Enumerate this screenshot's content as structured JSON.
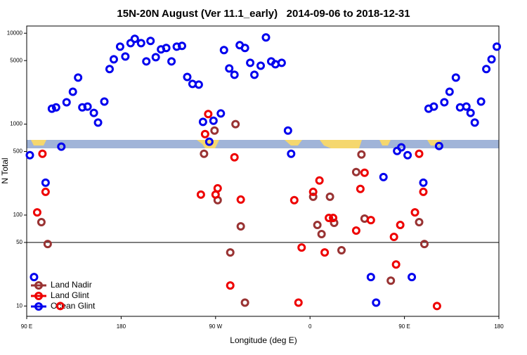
{
  "chart_data": {
    "type": "scatter",
    "title": "15N-20N August (Ver 11.1_early)   2014-09-06 to 2018-12-31",
    "x_label": "Longitude (deg E)",
    "y_label": "N Total",
    "xlim": [
      -270,
      180
    ],
    "xticks": [
      {
        "value": -270,
        "label": "90 E"
      },
      {
        "value": -180,
        "label": "180"
      },
      {
        "value": -90,
        "label": "90 W"
      },
      0,
      {
        "value": 90,
        "label": "90 E"
      },
      {
        "value": 180,
        "label": "180"
      }
    ],
    "ylim": [
      7.7,
      12000
    ],
    "yscale": "log",
    "yticks": [
      10,
      50,
      100,
      500,
      1000,
      5000,
      10000
    ],
    "hline": 50,
    "legend": "bottom-left",
    "series": [
      {
        "name": "Land Nadir",
        "color": "#993333",
        "x": [
          -256,
          -250,
          -101,
          -91,
          -88,
          -71,
          -76,
          -66,
          -62,
          3,
          7,
          11,
          19,
          23,
          30,
          44,
          49,
          52,
          77,
          104,
          109
        ],
        "values": [
          83.6,
          48.1,
          472,
          850,
          146,
          1000,
          38.8,
          75.2,
          10.9,
          159,
          77.8,
          61.8,
          159,
          82.2,
          41,
          297,
          464,
          91.4,
          19,
          83.6,
          48.1
        ]
      },
      {
        "name": "Land Glint",
        "color": "#ee0000",
        "x": [
          -255,
          -252,
          -260,
          -238,
          -104,
          -100,
          -97,
          -90,
          -88,
          -72,
          -66,
          -76,
          -15,
          -11,
          -8,
          3,
          9,
          14,
          18,
          22,
          44,
          48,
          52,
          58,
          80,
          82,
          86,
          100,
          104,
          108,
          121
        ],
        "values": [
          472,
          180,
          107,
          10,
          168,
          778,
          1290,
          168,
          197,
          432,
          148,
          16.8,
          146,
          10.9,
          44,
          180,
          240,
          38.8,
          93,
          93,
          67.5,
          194,
          292,
          88,
          57.5,
          28.6,
          77.8,
          107,
          472,
          180,
          10
        ]
      },
      {
        "name": "Ocean Glint",
        "color": "#0000ee",
        "x": [
          -267,
          -246,
          -242,
          -237,
          -232,
          -226,
          -221,
          -217,
          -212,
          -206,
          -202,
          -196,
          -191,
          -187,
          -181,
          -176,
          -171,
          -167,
          -161,
          -156,
          -152,
          -147,
          -142,
          -137,
          -132,
          -127,
          -122,
          -117,
          -112,
          -106,
          -102,
          -96,
          -92,
          -85,
          -82,
          -77,
          -72,
          -67,
          -62,
          -57,
          -53,
          -47,
          -42,
          -37,
          -33,
          -27,
          -21,
          -18,
          -263,
          -252,
          70,
          58,
          63,
          83,
          87,
          93,
          97,
          108,
          113,
          118,
          123,
          128,
          133,
          139,
          143,
          149,
          153,
          157,
          163,
          168,
          173,
          178
        ],
        "values": [
          456,
          1480,
          1530,
          565,
          1740,
          2270,
          3250,
          1530,
          1560,
          1330,
          1040,
          1770,
          4030,
          5160,
          7120,
          5540,
          7780,
          8670,
          7780,
          4900,
          8220,
          5450,
          6640,
          6880,
          4900,
          7120,
          7250,
          3300,
          2770,
          2720,
          1060,
          640,
          1090,
          1310,
          6520,
          4100,
          3490,
          7380,
          6880,
          4720,
          3490,
          4390,
          8980,
          4900,
          4560,
          4720,
          850,
          472,
          20.8,
          227,
          262,
          20.8,
          10.9,
          507,
          555,
          456,
          20.8,
          227,
          1480,
          1560,
          575,
          1740,
          2270,
          3250,
          1530,
          1560,
          1330,
          1040,
          1770,
          4030,
          5160,
          7120
        ]
      }
    ]
  }
}
